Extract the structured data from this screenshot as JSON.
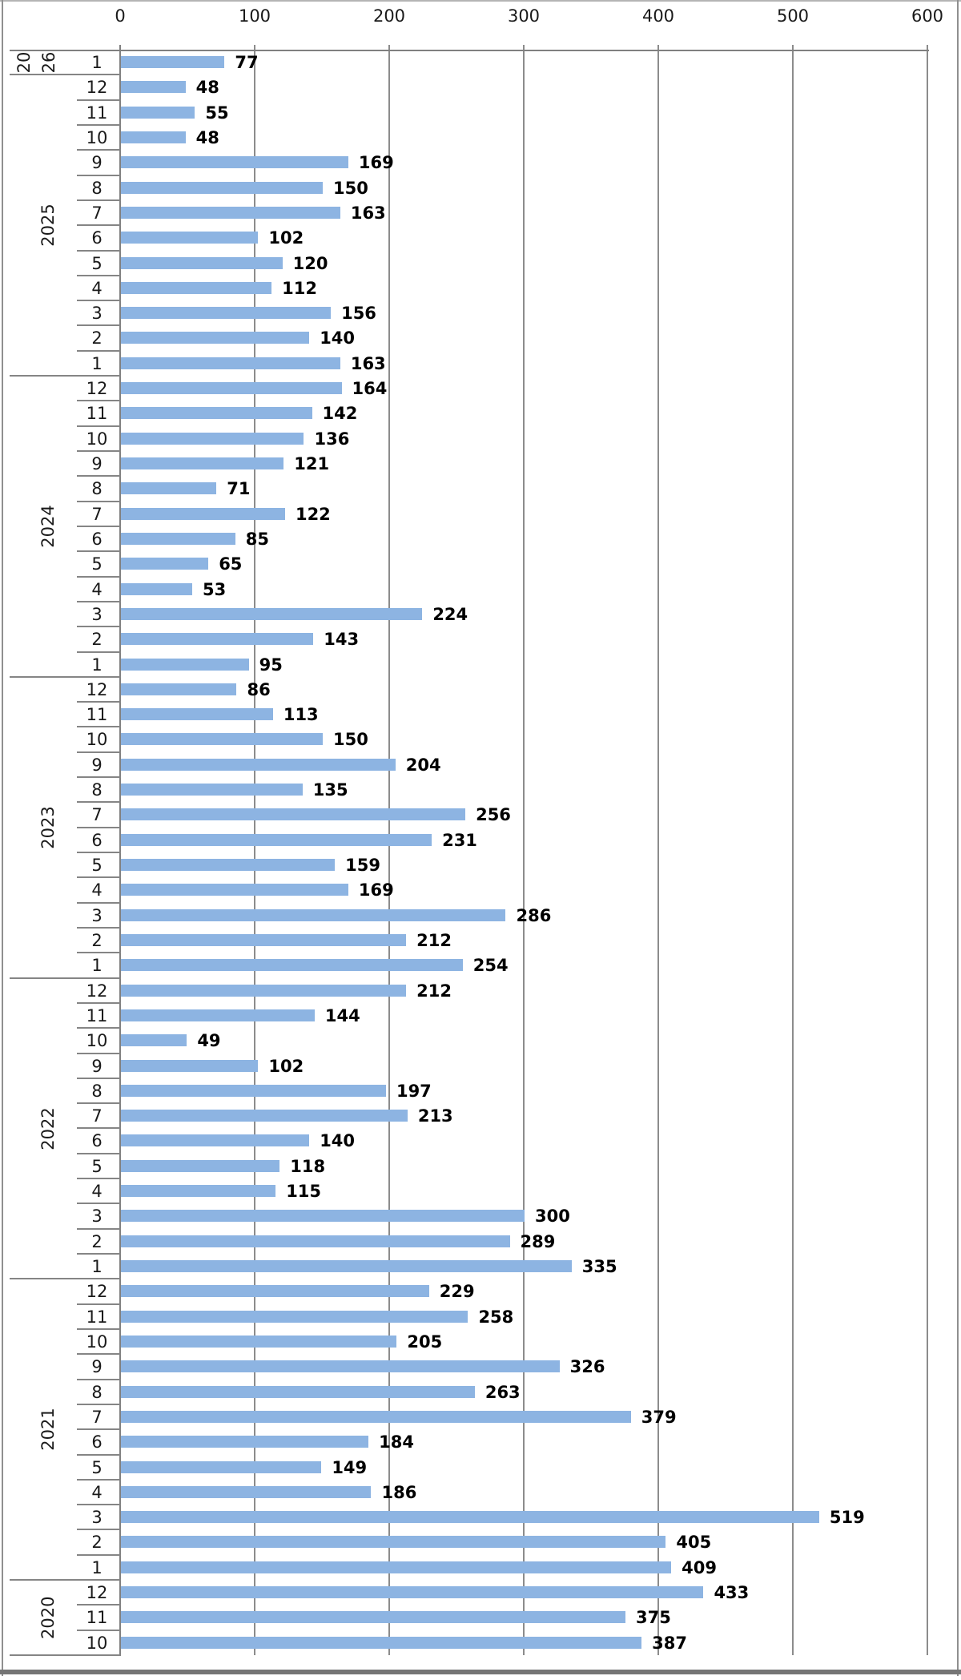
{
  "chart_data": {
    "type": "bar",
    "orientation": "horizontal",
    "title": "",
    "xlabel": "",
    "ylabel": "",
    "legend": null,
    "grid": true,
    "bar_color": "#8DB4E2",
    "gridline_color": "#8c8c8c",
    "value_axis": {
      "position": "top",
      "min": 0,
      "max": 600,
      "tick_labels": [
        "0",
        "100",
        "200",
        "300",
        "400",
        "500",
        "600"
      ],
      "tick_values": [
        0,
        100,
        200,
        300,
        400,
        500,
        600
      ]
    },
    "category_axis": {
      "outer_level_name": "year",
      "inner_level_name": "month"
    },
    "groups": [
      {
        "year": "2026",
        "year_label_lines": [
          "20",
          "26"
        ],
        "rows": [
          {
            "month": "1",
            "value": 77
          }
        ]
      },
      {
        "year": "2025",
        "year_label_lines": [
          "2025"
        ],
        "rows": [
          {
            "month": "12",
            "value": 48
          },
          {
            "month": "11",
            "value": 55
          },
          {
            "month": "10",
            "value": 48
          },
          {
            "month": "9",
            "value": 169
          },
          {
            "month": "8",
            "value": 150
          },
          {
            "month": "7",
            "value": 163
          },
          {
            "month": "6",
            "value": 102
          },
          {
            "month": "5",
            "value": 120
          },
          {
            "month": "4",
            "value": 112
          },
          {
            "month": "3",
            "value": 156
          },
          {
            "month": "2",
            "value": 140
          },
          {
            "month": "1",
            "value": 163
          }
        ]
      },
      {
        "year": "2024",
        "year_label_lines": [
          "2024"
        ],
        "rows": [
          {
            "month": "12",
            "value": 164
          },
          {
            "month": "11",
            "value": 142
          },
          {
            "month": "10",
            "value": 136
          },
          {
            "month": "9",
            "value": 121
          },
          {
            "month": "8",
            "value": 71
          },
          {
            "month": "7",
            "value": 122
          },
          {
            "month": "6",
            "value": 85
          },
          {
            "month": "5",
            "value": 65
          },
          {
            "month": "4",
            "value": 53
          },
          {
            "month": "3",
            "value": 224
          },
          {
            "month": "2",
            "value": 143
          },
          {
            "month": "1",
            "value": 95
          }
        ]
      },
      {
        "year": "2023",
        "year_label_lines": [
          "2023"
        ],
        "rows": [
          {
            "month": "12",
            "value": 86
          },
          {
            "month": "11",
            "value": 113
          },
          {
            "month": "10",
            "value": 150
          },
          {
            "month": "9",
            "value": 204
          },
          {
            "month": "8",
            "value": 135
          },
          {
            "month": "7",
            "value": 256
          },
          {
            "month": "6",
            "value": 231
          },
          {
            "month": "5",
            "value": 159
          },
          {
            "month": "4",
            "value": 169
          },
          {
            "month": "3",
            "value": 286
          },
          {
            "month": "2",
            "value": 212
          },
          {
            "month": "1",
            "value": 254
          }
        ]
      },
      {
        "year": "2022",
        "year_label_lines": [
          "2022"
        ],
        "rows": [
          {
            "month": "12",
            "value": 212
          },
          {
            "month": "11",
            "value": 144
          },
          {
            "month": "10",
            "value": 49
          },
          {
            "month": "9",
            "value": 102
          },
          {
            "month": "8",
            "value": 197
          },
          {
            "month": "7",
            "value": 213
          },
          {
            "month": "6",
            "value": 140
          },
          {
            "month": "5",
            "value": 118
          },
          {
            "month": "4",
            "value": 115
          },
          {
            "month": "3",
            "value": 300
          },
          {
            "month": "2",
            "value": 289
          },
          {
            "month": "1",
            "value": 335
          }
        ]
      },
      {
        "year": "2021",
        "year_label_lines": [
          "2021"
        ],
        "rows": [
          {
            "month": "12",
            "value": 229
          },
          {
            "month": "11",
            "value": 258
          },
          {
            "month": "10",
            "value": 205
          },
          {
            "month": "9",
            "value": 326
          },
          {
            "month": "8",
            "value": 263
          },
          {
            "month": "7",
            "value": 379
          },
          {
            "month": "6",
            "value": 184
          },
          {
            "month": "5",
            "value": 149
          },
          {
            "month": "4",
            "value": 186
          },
          {
            "month": "3",
            "value": 519
          },
          {
            "month": "2",
            "value": 405
          },
          {
            "month": "1",
            "value": 409
          }
        ]
      },
      {
        "year": "2020",
        "year_label_lines": [
          "2020"
        ],
        "rows": [
          {
            "month": "12",
            "value": 433
          },
          {
            "month": "11",
            "value": 375
          },
          {
            "month": "10",
            "value": 387
          }
        ]
      }
    ]
  }
}
